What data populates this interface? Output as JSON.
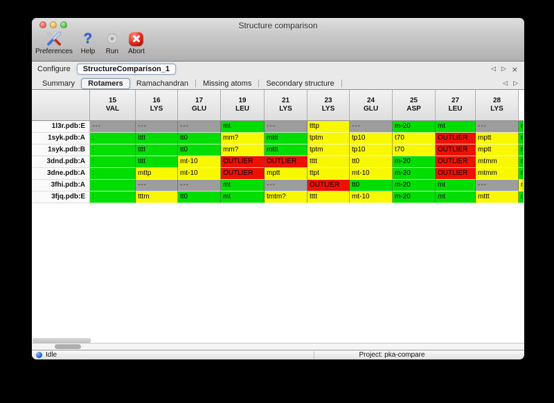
{
  "window": {
    "title": "Structure comparison"
  },
  "toolbar": {
    "items": [
      {
        "label": "Preferences",
        "icon": "tools-icon"
      },
      {
        "label": "Help",
        "icon": "question-mark-icon"
      },
      {
        "label": "Run",
        "icon": "gear-icon"
      },
      {
        "label": "Abort",
        "icon": "abort-icon"
      }
    ]
  },
  "configure": {
    "label": "Configure",
    "value": "StructureComparison_1",
    "nav": {
      "prev": "◁",
      "next": "▷",
      "close": "×"
    }
  },
  "tabs": {
    "items": [
      {
        "label": "Summary",
        "selected": false
      },
      {
        "label": "Rotamers",
        "selected": true
      },
      {
        "label": "Ramachandran",
        "selected": false
      },
      {
        "label": "Missing atoms",
        "selected": false
      },
      {
        "label": "Secondary structure",
        "selected": false
      }
    ],
    "nav": {
      "prev": "◁",
      "next": "▷"
    }
  },
  "colors": {
    "green": "#00dd00",
    "yellow": "#f8f800",
    "red": "#ee1100",
    "gray": "#9d9d9d"
  },
  "table": {
    "columns": [
      {
        "num": "15",
        "res": "VAL"
      },
      {
        "num": "16",
        "res": "LYS"
      },
      {
        "num": "17",
        "res": "GLU"
      },
      {
        "num": "19",
        "res": "LEU"
      },
      {
        "num": "21",
        "res": "LYS"
      },
      {
        "num": "23",
        "res": "LYS"
      },
      {
        "num": "24",
        "res": "GLU"
      },
      {
        "num": "25",
        "res": "ASP"
      },
      {
        "num": "27",
        "res": "LEU"
      },
      {
        "num": "28",
        "res": "LYS"
      },
      {
        "num": "",
        "res": ""
      }
    ],
    "rows": [
      {
        "label": "1l3r.pdb:E",
        "cells": [
          {
            "t": "---",
            "c": "gray"
          },
          {
            "t": "---",
            "c": "gray"
          },
          {
            "t": "---",
            "c": "gray"
          },
          {
            "t": "mt",
            "c": "green"
          },
          {
            "t": "---",
            "c": "gray"
          },
          {
            "t": "tttp",
            "c": "yellow"
          },
          {
            "t": "---",
            "c": "gray"
          },
          {
            "t": "m-20",
            "c": "green"
          },
          {
            "t": "mt",
            "c": "green"
          },
          {
            "t": "---",
            "c": "gray"
          },
          {
            "t": "m",
            "c": "green"
          }
        ]
      },
      {
        "label": "1syk.pdb:A",
        "cells": [
          {
            "t": ":",
            "c": "green"
          },
          {
            "t": "tttt",
            "c": "green"
          },
          {
            "t": "tt0",
            "c": "green"
          },
          {
            "t": "mm?",
            "c": "yellow"
          },
          {
            "t": "mttt",
            "c": "green"
          },
          {
            "t": "tptm",
            "c": "yellow"
          },
          {
            "t": "tp10",
            "c": "yellow"
          },
          {
            "t": "t70",
            "c": "yellow"
          },
          {
            "t": "OUTLIER",
            "c": "red"
          },
          {
            "t": "mptt",
            "c": "yellow"
          },
          {
            "t": "m",
            "c": "green"
          }
        ]
      },
      {
        "label": "1syk.pdb:B",
        "cells": [
          {
            "t": ":",
            "c": "green"
          },
          {
            "t": "tttt",
            "c": "green"
          },
          {
            "t": "tt0",
            "c": "green"
          },
          {
            "t": "mm?",
            "c": "yellow"
          },
          {
            "t": "mttt",
            "c": "green"
          },
          {
            "t": "tptm",
            "c": "yellow"
          },
          {
            "t": "tp10",
            "c": "yellow"
          },
          {
            "t": "t70",
            "c": "yellow"
          },
          {
            "t": "OUTLIER",
            "c": "red"
          },
          {
            "t": "mptt",
            "c": "yellow"
          },
          {
            "t": "m",
            "c": "green"
          }
        ]
      },
      {
        "label": "3dnd.pdb:A",
        "cells": [
          {
            "t": ":",
            "c": "green"
          },
          {
            "t": "tttt",
            "c": "green"
          },
          {
            "t": "mt-10",
            "c": "yellow"
          },
          {
            "t": "OUTLIER",
            "c": "red"
          },
          {
            "t": "OUTLIER",
            "c": "red"
          },
          {
            "t": "tttt",
            "c": "yellow"
          },
          {
            "t": "tt0",
            "c": "yellow"
          },
          {
            "t": "m-20",
            "c": "green"
          },
          {
            "t": "OUTLIER",
            "c": "red"
          },
          {
            "t": "mtmm",
            "c": "yellow"
          },
          {
            "t": "m",
            "c": "green"
          }
        ]
      },
      {
        "label": "3dne.pdb:A",
        "cells": [
          {
            "t": ":",
            "c": "green"
          },
          {
            "t": "mttp",
            "c": "yellow"
          },
          {
            "t": "mt-10",
            "c": "yellow"
          },
          {
            "t": "OUTLIER",
            "c": "red"
          },
          {
            "t": "mptt",
            "c": "yellow"
          },
          {
            "t": "ttpt",
            "c": "yellow"
          },
          {
            "t": "mt-10",
            "c": "yellow"
          },
          {
            "t": "m-20",
            "c": "green"
          },
          {
            "t": "OUTLIER",
            "c": "red"
          },
          {
            "t": "mtmm",
            "c": "yellow"
          },
          {
            "t": "m",
            "c": "green"
          }
        ]
      },
      {
        "label": "3fhi.pdb:A",
        "cells": [
          {
            "t": ":",
            "c": "green"
          },
          {
            "t": "---",
            "c": "gray"
          },
          {
            "t": "---",
            "c": "gray"
          },
          {
            "t": "mt",
            "c": "green"
          },
          {
            "t": "---",
            "c": "gray"
          },
          {
            "t": "OUTLIER",
            "c": "red"
          },
          {
            "t": "tt0",
            "c": "green"
          },
          {
            "t": "m-20",
            "c": "green"
          },
          {
            "t": "mt",
            "c": "green"
          },
          {
            "t": "---",
            "c": "gray"
          },
          {
            "t": "m",
            "c": "yellow"
          }
        ]
      },
      {
        "label": "3fjq.pdb:E",
        "cells": [
          {
            "t": ":",
            "c": "green"
          },
          {
            "t": "tttm",
            "c": "yellow"
          },
          {
            "t": "tt0",
            "c": "green"
          },
          {
            "t": "mt",
            "c": "green"
          },
          {
            "t": "tmtm?",
            "c": "yellow"
          },
          {
            "t": "tttt",
            "c": "yellow"
          },
          {
            "t": "mt-10",
            "c": "yellow"
          },
          {
            "t": "m-20",
            "c": "green"
          },
          {
            "t": "mt",
            "c": "green"
          },
          {
            "t": "mttt",
            "c": "yellow"
          },
          {
            "t": "m",
            "c": "green"
          }
        ]
      }
    ]
  },
  "statusbar": {
    "status": "Idle",
    "project": "Project: pka-compare"
  }
}
